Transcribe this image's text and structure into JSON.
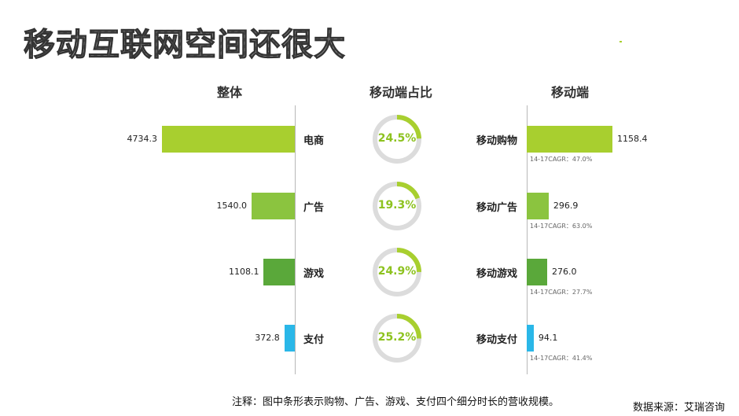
{
  "title": "移动互联网空间还很大",
  "headers": {
    "overall": "整体",
    "share": "移动端占比",
    "mobile": "移动端"
  },
  "colors": {
    "lime": "#a8cf2f",
    "green_mid": "#8bc43f",
    "green_dark": "#5aa83a",
    "cyan": "#2ab7e8",
    "ring_bg": "#dcdcdc",
    "ring_fg": "#a8cf2f"
  },
  "chart_data": [
    {
      "type": "bar",
      "title": "整体",
      "categories": [
        "电商",
        "广告",
        "游戏",
        "支付"
      ],
      "values": [
        4734.3,
        1540.0,
        1108.1,
        372.8
      ],
      "value_labels": [
        "4734.3",
        "1540.0",
        "1108.1",
        "372.8"
      ],
      "orientation": "horizontal-left"
    },
    {
      "type": "pie",
      "title": "移动端占比",
      "categories": [
        "电商",
        "广告",
        "游戏",
        "支付"
      ],
      "values": [
        24.5,
        19.3,
        24.9,
        25.2
      ],
      "value_labels": [
        "24.5%",
        "19.3%",
        "24.9%",
        "25.2%"
      ]
    },
    {
      "type": "bar",
      "title": "移动端",
      "categories": [
        "移动购物",
        "移动广告",
        "移动游戏",
        "移动支付"
      ],
      "values": [
        1158.4,
        296.9,
        276.0,
        94.1
      ],
      "value_labels": [
        "1158.4",
        "296.9",
        "276.0",
        "94.1"
      ],
      "cagr_labels": [
        "14-17CAGR：47.0%",
        "14-17CAGR：63.0%",
        "14-17CAGR：27.7%",
        "14-17CAGR：41.4%"
      ],
      "orientation": "horizontal-right"
    }
  ],
  "note": "注释：图中条形表示购物、广告、游戏、支付四个细分时长的营收规模。",
  "source": "数据来源：艾瑞咨询"
}
